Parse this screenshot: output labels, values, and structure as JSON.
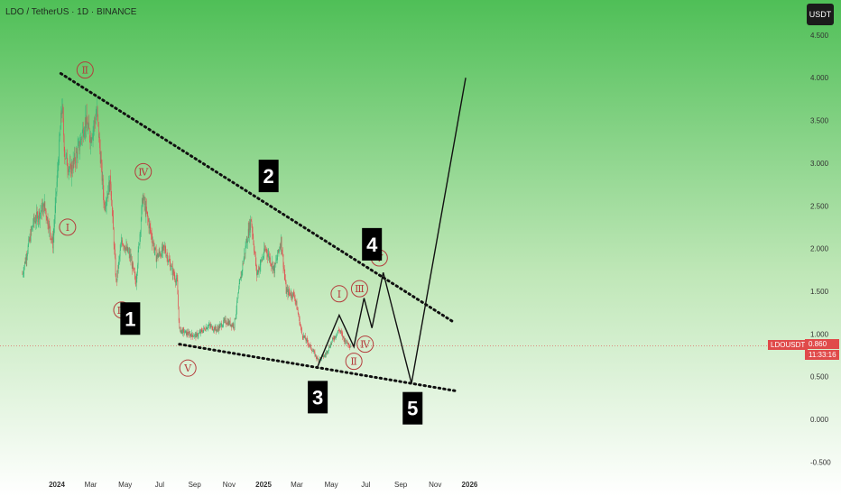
{
  "header": {
    "title": "LDO / TetherUS · 1D · BINANCE"
  },
  "toolbar": {
    "currency_label": "USDT"
  },
  "price_tag": {
    "symbol": "LDOUSDT",
    "value": "0.860",
    "countdown": "11:33:16"
  },
  "colors": {
    "bg_top": "#4fc15a",
    "bg_bottom": "#ffffff",
    "up": "#34b87a",
    "down": "#e05252",
    "label_red": "#b43c3c"
  },
  "chart_data": {
    "type": "candlestick",
    "title": "LDO / TetherUS · 1D · BINANCE",
    "y_ticks": [
      "4.500",
      "4.000",
      "3.500",
      "3.000",
      "2.500",
      "2.000",
      "1.500",
      "1.000",
      "0.500",
      "0.000",
      "-0.500"
    ],
    "x_ticks": [
      "2024",
      "Mar",
      "May",
      "Jul",
      "Sep",
      "Nov",
      "2025",
      "Mar",
      "May",
      "Jul",
      "Sep",
      "Nov",
      "2026"
    ],
    "ylim": [
      -0.5,
      4.5
    ],
    "current_price": 0.86,
    "price_path": [
      {
        "t": "2023-11-01",
        "p": 1.7
      },
      {
        "t": "2023-11-20",
        "p": 2.3
      },
      {
        "t": "2023-12-10",
        "p": 2.5
      },
      {
        "t": "2023-12-25",
        "p": 2.05
      },
      {
        "t": "2024-01-10",
        "p": 3.7
      },
      {
        "t": "2024-01-15",
        "p": 3.1
      },
      {
        "t": "2024-01-25",
        "p": 2.9
      },
      {
        "t": "2024-02-10",
        "p": 3.2
      },
      {
        "t": "2024-02-20",
        "p": 3.5
      },
      {
        "t": "2024-03-01",
        "p": 3.3
      },
      {
        "t": "2024-03-12",
        "p": 3.6
      },
      {
        "t": "2024-03-25",
        "p": 2.5
      },
      {
        "t": "2024-04-05",
        "p": 2.8
      },
      {
        "t": "2024-04-15",
        "p": 1.6
      },
      {
        "t": "2024-04-25",
        "p": 2.1
      },
      {
        "t": "2024-05-10",
        "p": 1.9
      },
      {
        "t": "2024-05-20",
        "p": 1.6
      },
      {
        "t": "2024-06-01",
        "p": 2.6
      },
      {
        "t": "2024-06-15",
        "p": 2.2
      },
      {
        "t": "2024-06-25",
        "p": 1.9
      },
      {
        "t": "2024-07-10",
        "p": 2.0
      },
      {
        "t": "2024-07-20",
        "p": 1.8
      },
      {
        "t": "2024-08-01",
        "p": 1.6
      },
      {
        "t": "2024-08-05",
        "p": 1.05
      },
      {
        "t": "2024-08-20",
        "p": 1.0
      },
      {
        "t": "2024-09-05",
        "p": 0.98
      },
      {
        "t": "2024-09-25",
        "p": 1.1
      },
      {
        "t": "2024-10-10",
        "p": 1.05
      },
      {
        "t": "2024-10-25",
        "p": 1.15
      },
      {
        "t": "2024-11-10",
        "p": 1.1
      },
      {
        "t": "2024-11-20",
        "p": 1.6
      },
      {
        "t": "2024-12-01",
        "p": 2.05
      },
      {
        "t": "2024-12-10",
        "p": 2.35
      },
      {
        "t": "2024-12-20",
        "p": 1.7
      },
      {
        "t": "2025-01-05",
        "p": 2.0
      },
      {
        "t": "2025-01-20",
        "p": 1.75
      },
      {
        "t": "2025-02-01",
        "p": 2.1
      },
      {
        "t": "2025-02-10",
        "p": 1.5
      },
      {
        "t": "2025-02-25",
        "p": 1.45
      },
      {
        "t": "2025-03-10",
        "p": 1.0
      },
      {
        "t": "2025-03-25",
        "p": 0.85
      },
      {
        "t": "2025-04-07",
        "p": 0.7
      },
      {
        "t": "2025-04-20",
        "p": 0.75
      },
      {
        "t": "2025-05-05",
        "p": 0.95
      },
      {
        "t": "2025-05-15",
        "p": 1.05
      },
      {
        "t": "2025-05-25",
        "p": 0.92
      },
      {
        "t": "2025-06-05",
        "p": 0.86
      }
    ],
    "trendlines": [
      {
        "name": "upper",
        "from": {
          "t": "2024-01-08",
          "p": 4.05
        },
        "to": {
          "t": "2025-12-01",
          "p": 1.15
        },
        "style": "dotted"
      },
      {
        "name": "lower",
        "from": {
          "t": "2024-08-05",
          "p": 0.88
        },
        "to": {
          "t": "2025-12-10",
          "p": 0.33
        },
        "style": "dotted"
      }
    ],
    "projection": [
      {
        "t": "2025-04-07",
        "p": 0.62
      },
      {
        "t": "2025-05-15",
        "p": 1.22
      },
      {
        "t": "2025-06-10",
        "p": 0.85
      },
      {
        "t": "2025-06-28",
        "p": 1.42
      },
      {
        "t": "2025-07-12",
        "p": 1.07
      },
      {
        "t": "2025-08-01",
        "p": 1.72
      },
      {
        "t": "2025-09-20",
        "p": 0.42
      },
      {
        "t": "2025-12-25",
        "p": 4.0
      }
    ],
    "wave_labels": [
      {
        "text": "Ⅰ",
        "t": "2024-01-20",
        "p": 2.25,
        "style": "circle"
      },
      {
        "text": "Ⅱ",
        "t": "2024-02-20",
        "p": 4.09,
        "style": "circle"
      },
      {
        "text": "Ⅲ",
        "t": "2024-04-25",
        "p": 1.28,
        "style": "circle"
      },
      {
        "text": "Ⅳ",
        "t": "2024-06-02",
        "p": 2.9,
        "style": "circle"
      },
      {
        "text": "Ⅴ",
        "t": "2024-08-20",
        "p": 0.6,
        "style": "circle"
      },
      {
        "text": "Ⅰ",
        "t": "2025-05-15",
        "p": 1.47,
        "style": "circle"
      },
      {
        "text": "Ⅱ",
        "t": "2025-06-10",
        "p": 0.68,
        "style": "circle"
      },
      {
        "text": "Ⅲ",
        "t": "2025-06-20",
        "p": 1.53,
        "style": "circle"
      },
      {
        "text": "Ⅳ",
        "t": "2025-06-30",
        "p": 0.88,
        "style": "circle"
      },
      {
        "text": "Ⅴ",
        "t": "2025-07-25",
        "p": 1.89,
        "style": "circle"
      },
      {
        "text": "1",
        "t": "2024-05-10",
        "p": 1.18,
        "style": "box"
      },
      {
        "text": "2",
        "t": "2025-01-10",
        "p": 2.85,
        "style": "box"
      },
      {
        "text": "3",
        "t": "2025-04-07",
        "p": 0.26,
        "style": "box"
      },
      {
        "text": "4",
        "t": "2025-07-12",
        "p": 2.05,
        "style": "box"
      },
      {
        "text": "5",
        "t": "2025-09-22",
        "p": 0.13,
        "style": "box"
      }
    ]
  }
}
